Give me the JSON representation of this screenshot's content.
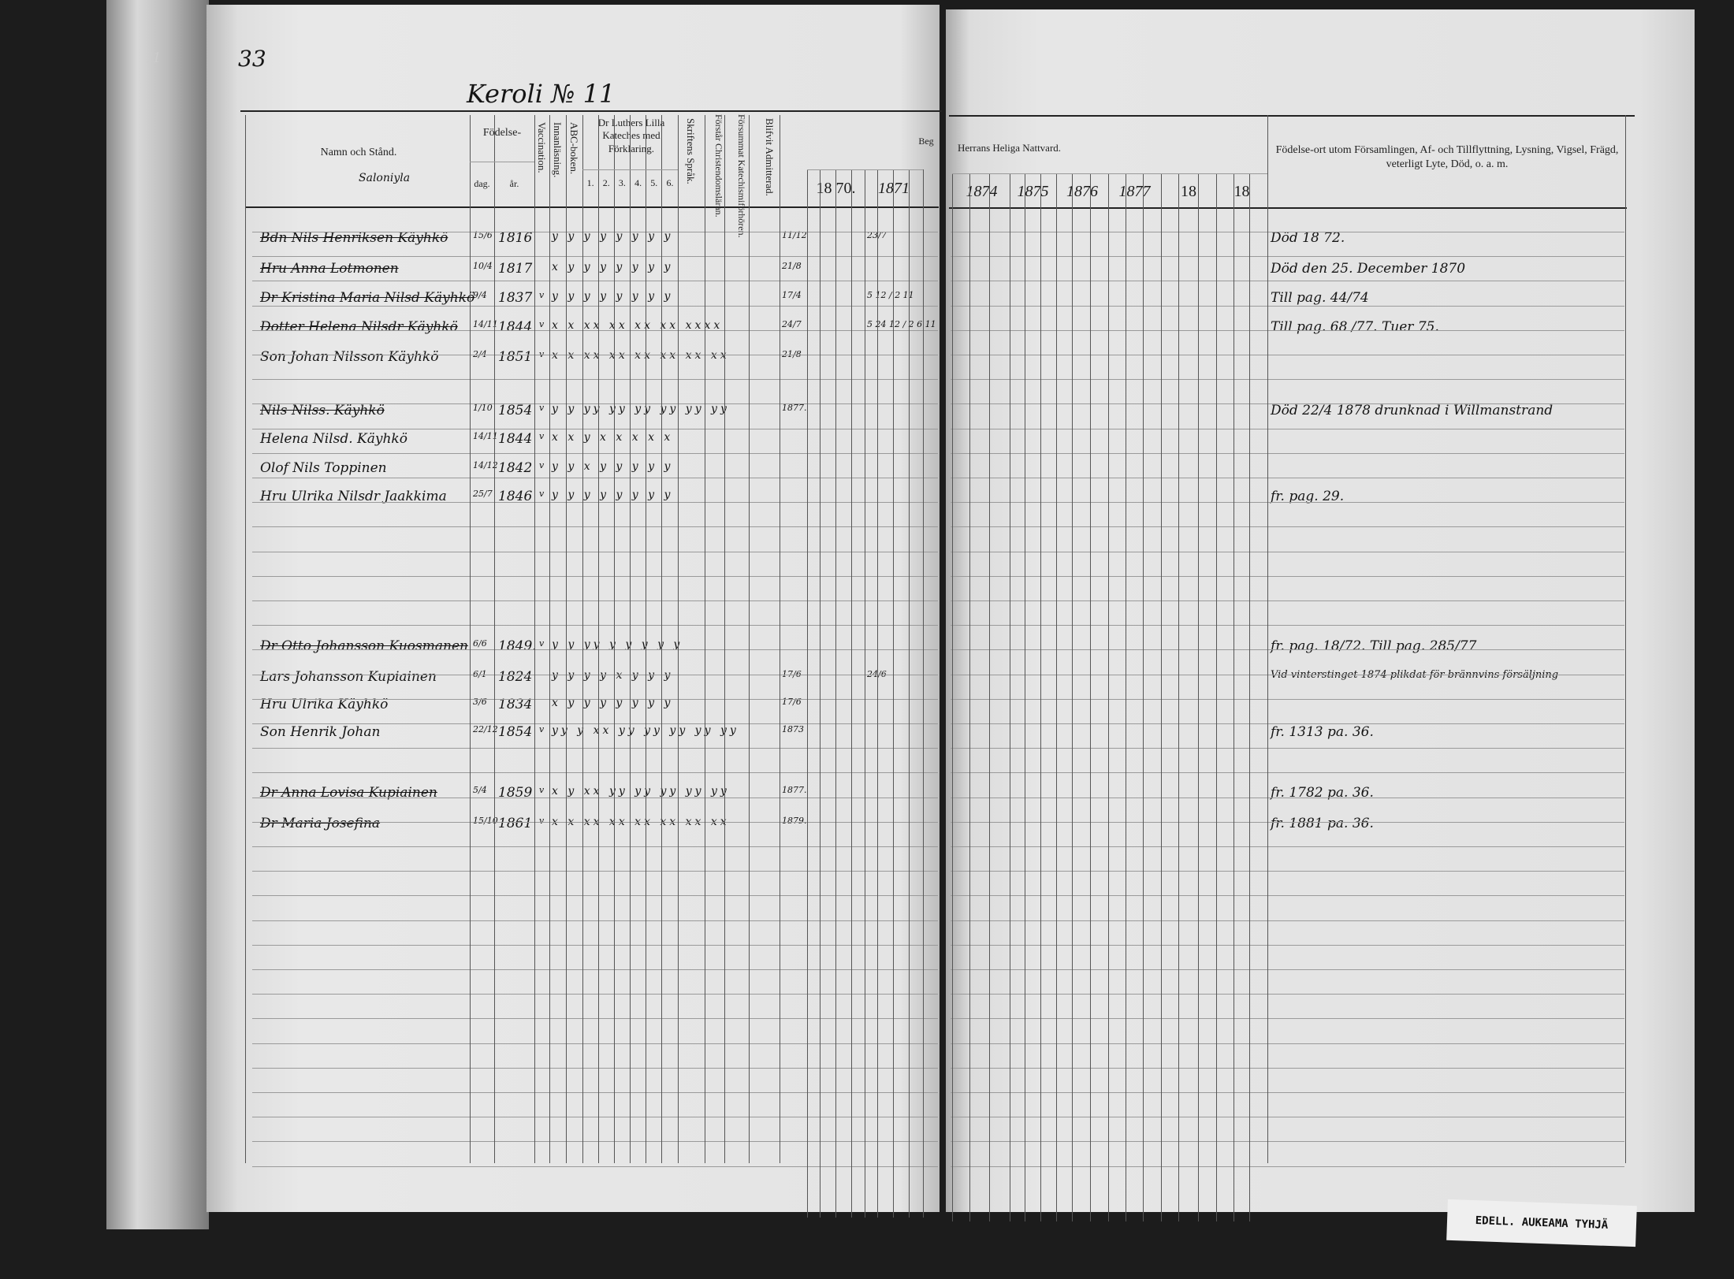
{
  "page_number": "33",
  "left_margin_number": "11",
  "title": "Keroli № 11",
  "headers": {
    "name": "Namn och Stånd.",
    "name_sub": "Saloniyla",
    "birth": "Födelse-",
    "birth_day": "dag.",
    "birth_year": "år.",
    "vaccination": "Vaccination.",
    "reading": "Innanläsning.",
    "abc": "ABC-boken.",
    "catechism": "Dr Luthers Lilla Kateches med Förklaring.",
    "catechism_parts": [
      "1.",
      "2.",
      "3.",
      "4.",
      "5.",
      "6."
    ],
    "scripture": "Skriftens Språk.",
    "understands": "Förstår Christendomsläran.",
    "hearing": "Försummat Katechismiförhören.",
    "admitted": "Blifvit Admitterad.",
    "begun": "Beg",
    "communion": "Herrans Heliga Nattvard.",
    "years_left": [
      "18 70.",
      "1871"
    ],
    "years_right": [
      "1874",
      "1875",
      "1876",
      "1877",
      "18",
      "18"
    ],
    "remarks": "Födelse-ort utom Församlingen, Af- och Tillflyttning, Lysning, Vigsel, Frägd, veterligt Lyte, Död, o. a. m."
  },
  "entries": [
    {
      "name": "Bdn Nils Henriksen Käyhkö",
      "day": "15/6",
      "year": "1816",
      "vacc": "",
      "marks": "y y y y y y y y",
      "struck": true,
      "comm": "11/12",
      "comm2": "23/7",
      "remark": "Död 18 72."
    },
    {
      "name": "Hru Anna Lotmonen",
      "day": "10/4",
      "year": "1817",
      "vacc": "",
      "marks": "x y y y y y y y",
      "struck": true,
      "comm": "21/8",
      "comm2": "",
      "remark": "Död den 25. December 1870"
    },
    {
      "name": "Dr Kristina Maria Nilsd Käyhkö",
      "day": "9/4",
      "year": "1837",
      "vacc": "v",
      "marks": "y y y y y y y y",
      "struck": true,
      "comm": "17/4",
      "comm2": "5 12 / 2 11",
      "remark": "Till pag. 44/74"
    },
    {
      "name": "Dotter Helena Nilsdr Käyhkö",
      "day": "14/11",
      "year": "1844",
      "vacc": "v",
      "marks": "x x xx xx xx xx xxxx",
      "struck": true,
      "comm": "24/7",
      "comm2": "5 24 12 / 2 6 11",
      "remark": "Till pag. 68 /77. Tuer 75."
    },
    {
      "name": "Son Johan Nilsson Käyhkö",
      "day": "2/4",
      "year": "1851",
      "vacc": "v",
      "marks": "x x xx xx xx xx xx xx",
      "struck": false,
      "comm": "21/8",
      "comm2": "",
      "remark": ""
    },
    {
      "name": "Nils Nilss. Käyhkö",
      "day": "1/10",
      "year": "1854",
      "vacc": "v",
      "marks": "y y yy yy yy yy yy yy",
      "struck": true,
      "comm": "1877.",
      "comm2": "",
      "remark": "Död 22/4 1878 drunknad i Willmanstrand"
    },
    {
      "name": "Helena Nilsd. Käyhkö",
      "day": "14/11",
      "year": "1844",
      "vacc": "v",
      "marks": "x x y x x x x x",
      "struck": false,
      "comm": "",
      "comm2": "",
      "remark": ""
    },
    {
      "name": "Olof Nils Toppinen",
      "day": "14/12",
      "year": "1842",
      "vacc": "v",
      "marks": "y y x y y y y y",
      "struck": false,
      "comm": "",
      "comm2": "",
      "remark": ""
    },
    {
      "name": "Hru Ulrika Nilsdr Jaakkima",
      "day": "25/7",
      "year": "1846",
      "vacc": "v",
      "marks": "y y y y y y y y",
      "struck": false,
      "comm": "",
      "comm2": "",
      "remark": "fr. pag. 29."
    },
    {
      "name": "Dr Otto Johansson Kuosmanen",
      "day": "6/6",
      "year": "1849.",
      "vacc": "v",
      "marks": "y y yy y y y y y",
      "struck": true,
      "comm": "",
      "comm2": "",
      "remark": "fr. pag. 18/72. Till pag. 285/77"
    },
    {
      "name": "Lars Johansson Kupiainen",
      "day": "6/1",
      "year": "1824",
      "vacc": "",
      "marks": "y y y y x y y y",
      "struck": false,
      "comm": "17/6",
      "comm2": "24/6",
      "remark": "Vid vinterstinget 1874 plikdat för brännvins försäljning"
    },
    {
      "name": "Hru Ulrika Käyhkö",
      "day": "3/6",
      "year": "1834",
      "vacc": "",
      "marks": "x y y y y y y y",
      "struck": false,
      "comm": "17/6",
      "comm2": "",
      "remark": ""
    },
    {
      "name": "Son Henrik Johan",
      "day": "22/12",
      "year": "1854",
      "vacc": "v",
      "marks": "yy y xx yy yy yy yy yy",
      "struck": false,
      "comm": "1873",
      "comm2": "",
      "remark": "fr. 1313 pa. 36."
    },
    {
      "name": "Dr Anna Lovisa Kupiainen",
      "day": "5/4",
      "year": "1859",
      "vacc": "v",
      "marks": "x y xx yy yy yy yy yy",
      "struck": true,
      "comm": "1877.",
      "comm2": "",
      "remark": "fr. 1782 pa. 36."
    },
    {
      "name": "Dr Maria Josefina",
      "day": "15/10",
      "year": "1861",
      "vacc": "v",
      "marks": "x x xx xx xx xx xx xx",
      "struck": true,
      "comm": "1879.",
      "comm2": "",
      "remark": "fr. 1881 pa. 36."
    }
  ],
  "label": "EDELL. AUKEAMA TYHJÄ"
}
